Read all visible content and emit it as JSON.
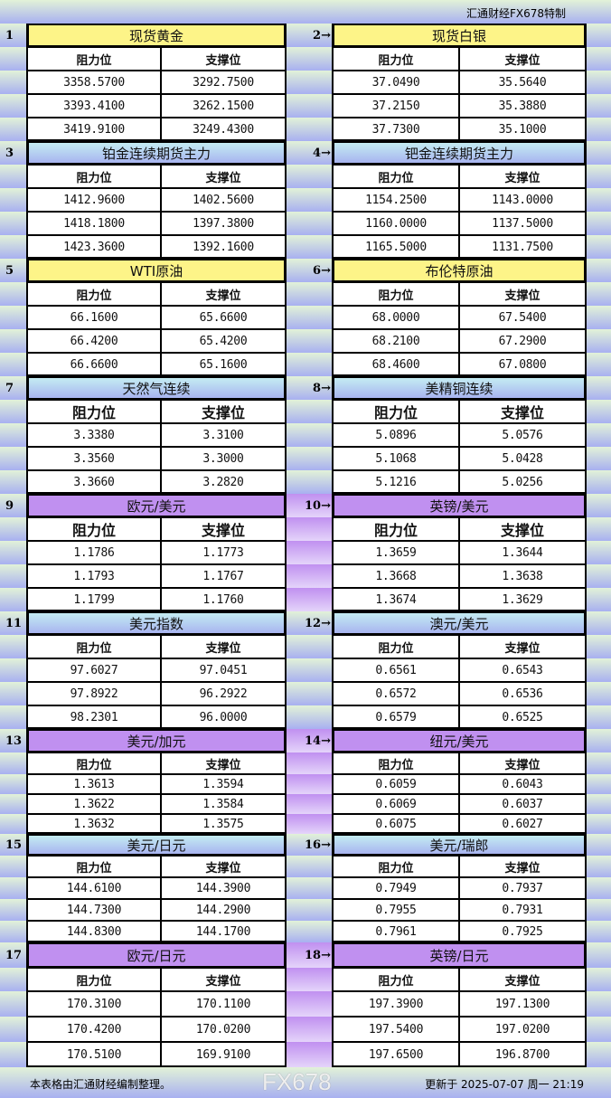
{
  "header": {
    "brand": "汇通财经FX678特制"
  },
  "columns": {
    "resistance": "阻力位",
    "support": "支撑位"
  },
  "colors": {
    "yellow": "#fdf488",
    "blue": "#b4d8f2",
    "purple": "#c090f0"
  },
  "sections": [
    {
      "left": {
        "num": "1",
        "title": "现货黄金",
        "rows": [
          [
            "3358.5700",
            "3292.7500"
          ],
          [
            "3393.4100",
            "3262.1500"
          ],
          [
            "3419.9100",
            "3249.4300"
          ]
        ]
      },
      "right": {
        "num": "2→",
        "title": "现货白银",
        "rows": [
          [
            "37.0490",
            "35.5640"
          ],
          [
            "37.2150",
            "35.3880"
          ],
          [
            "37.7300",
            "35.1000"
          ]
        ]
      },
      "color": "yellow"
    },
    {
      "left": {
        "num": "3",
        "title": "铂金连续期货主力",
        "rows": [
          [
            "1412.9600",
            "1402.5600"
          ],
          [
            "1418.1800",
            "1397.3800"
          ],
          [
            "1423.3600",
            "1392.1600"
          ]
        ]
      },
      "right": {
        "num": "4→",
        "title": "钯金连续期货主力",
        "rows": [
          [
            "1154.2500",
            "1143.0000"
          ],
          [
            "1160.0000",
            "1137.5000"
          ],
          [
            "1165.5000",
            "1131.7500"
          ]
        ]
      },
      "color": "blue"
    },
    {
      "left": {
        "num": "5",
        "title": "WTI原油",
        "rows": [
          [
            "66.1600",
            "65.6600"
          ],
          [
            "66.4200",
            "65.4200"
          ],
          [
            "66.6600",
            "65.1600"
          ]
        ]
      },
      "right": {
        "num": "6→",
        "title": "布伦特原油",
        "rows": [
          [
            "68.0000",
            "67.5400"
          ],
          [
            "68.2100",
            "67.2900"
          ],
          [
            "68.4600",
            "67.0800"
          ]
        ]
      },
      "color": "yellow"
    },
    {
      "left": {
        "num": "7",
        "title": "天然气连续",
        "rows": [
          [
            "3.3380",
            "3.3100"
          ],
          [
            "3.3560",
            "3.3000"
          ],
          [
            "3.3660",
            "3.2820"
          ]
        ]
      },
      "right": {
        "num": "8→",
        "title": "美精铜连续",
        "rows": [
          [
            "5.0896",
            "5.0576"
          ],
          [
            "5.1068",
            "5.0428"
          ],
          [
            "5.1216",
            "5.0256"
          ]
        ]
      },
      "color": "blue"
    },
    {
      "left": {
        "num": "9",
        "title": "欧元/美元",
        "rows": [
          [
            "1.1786",
            "1.1773"
          ],
          [
            "1.1793",
            "1.1767"
          ],
          [
            "1.1799",
            "1.1760"
          ]
        ]
      },
      "right": {
        "num": "10→",
        "title": "英镑/美元",
        "rows": [
          [
            "1.3659",
            "1.3644"
          ],
          [
            "1.3668",
            "1.3638"
          ],
          [
            "1.3674",
            "1.3629"
          ]
        ]
      },
      "color": "purple"
    },
    {
      "left": {
        "num": "11",
        "title": "美元指数",
        "rows": [
          [
            "97.6027",
            "97.0451"
          ],
          [
            "97.8922",
            "96.2922"
          ],
          [
            "98.2301",
            "96.0000"
          ]
        ]
      },
      "right": {
        "num": "12→",
        "title": "澳元/美元",
        "rows": [
          [
            "0.6561",
            "0.6543"
          ],
          [
            "0.6572",
            "0.6536"
          ],
          [
            "0.6579",
            "0.6525"
          ]
        ]
      },
      "color": "blue"
    },
    {
      "left": {
        "num": "13",
        "title": "美元/加元",
        "rows": [
          [
            "1.3613",
            "1.3594"
          ],
          [
            "1.3622",
            "1.3584"
          ],
          [
            "1.3632",
            "1.3575"
          ]
        ]
      },
      "right": {
        "num": "14→",
        "title": "纽元/美元",
        "rows": [
          [
            "0.6059",
            "0.6043"
          ],
          [
            "0.6069",
            "0.6037"
          ],
          [
            "0.6075",
            "0.6027"
          ]
        ]
      },
      "color": "purple"
    },
    {
      "left": {
        "num": "15",
        "title": "美元/日元",
        "rows": [
          [
            "144.6100",
            "144.3900"
          ],
          [
            "144.7300",
            "144.2900"
          ],
          [
            "144.8300",
            "144.1700"
          ]
        ]
      },
      "right": {
        "num": "16→",
        "title": "美元/瑞郎",
        "rows": [
          [
            "0.7949",
            "0.7937"
          ],
          [
            "0.7955",
            "0.7931"
          ],
          [
            "0.7961",
            "0.7925"
          ]
        ]
      },
      "color": "blue"
    },
    {
      "left": {
        "num": "17",
        "title": "欧元/日元",
        "rows": [
          [
            "170.3100",
            "170.1100"
          ],
          [
            "170.4200",
            "170.0200"
          ],
          [
            "170.5100",
            "169.9100"
          ]
        ]
      },
      "right": {
        "num": "18→",
        "title": "英镑/日元",
        "rows": [
          [
            "197.3900",
            "197.1300"
          ],
          [
            "197.5400",
            "197.0200"
          ],
          [
            "197.6500",
            "196.8700"
          ]
        ]
      },
      "color": "purple"
    }
  ],
  "footer": {
    "note": "本表格由汇通财经编制整理。",
    "updated": "更新于 2025-07-07 周一 21:19",
    "watermark": "FX678"
  }
}
